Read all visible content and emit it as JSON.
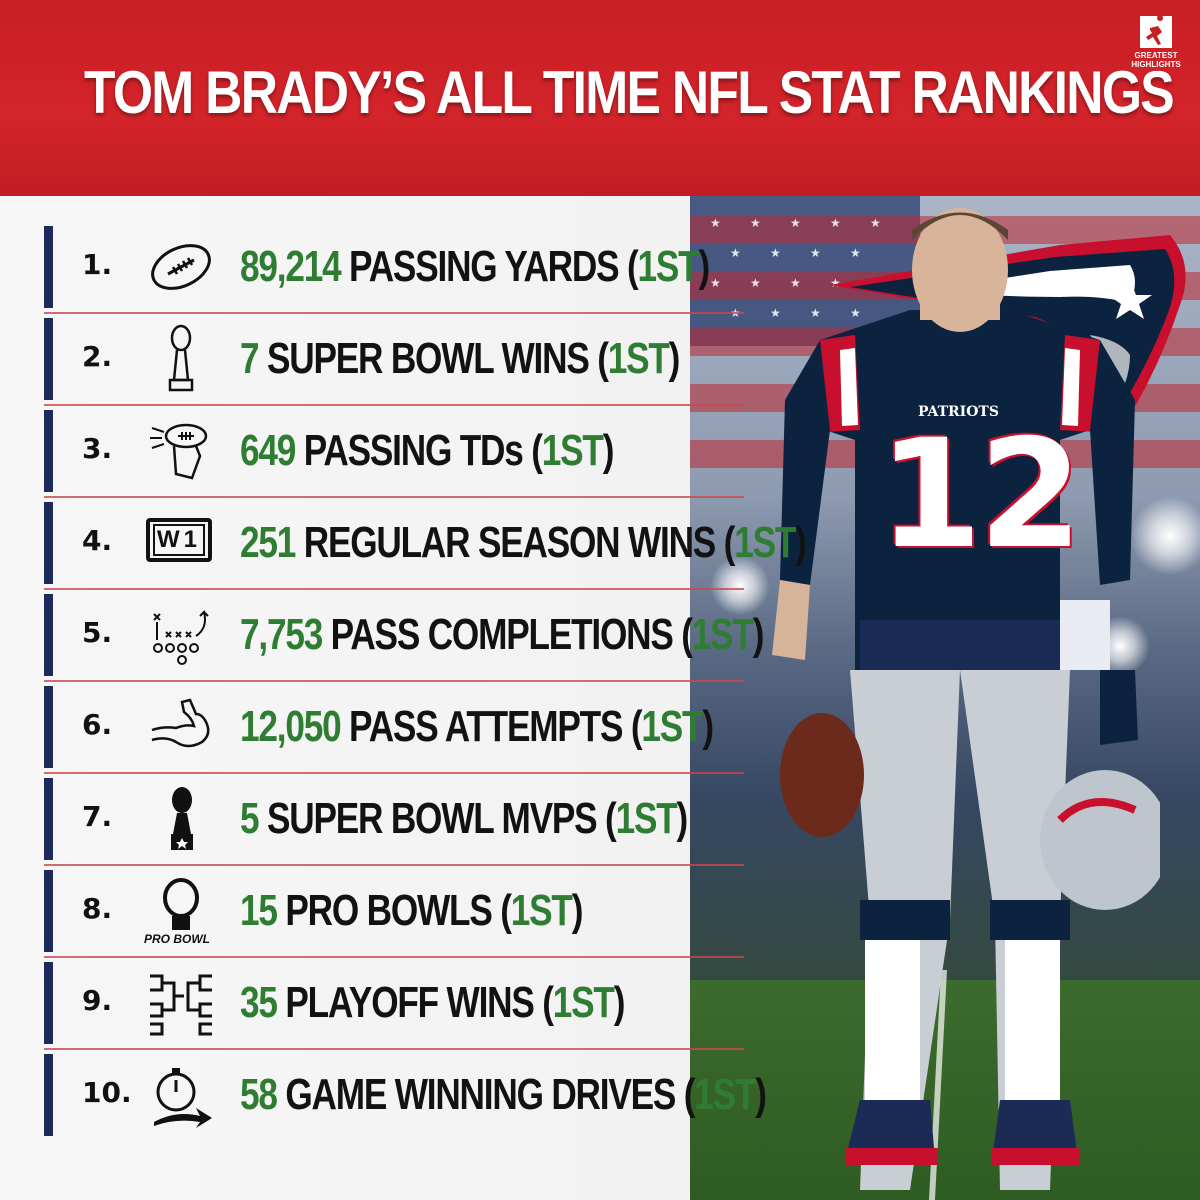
{
  "header": {
    "title": "TOM BRADY’S ALL TIME NFL STAT RANKINGS",
    "brand": "GREATEST HIGHLIGHTS",
    "accent_color": "#d3242a"
  },
  "player": {
    "team_name": "PATRIOTS",
    "jersey_number": "12"
  },
  "stats": [
    {
      "number": "1.",
      "value": "89,214",
      "label": "PASSING YARDS",
      "rank": "1ST",
      "icon": "football-icon"
    },
    {
      "number": "2.",
      "value": "7",
      "label": "SUPER BOWL WINS",
      "rank": "1ST",
      "icon": "lombardi-trophy-icon"
    },
    {
      "number": "3.",
      "value": "649",
      "label": "PASSING TDs",
      "rank": "1ST",
      "icon": "hand-throwing-icon"
    },
    {
      "number": "4.",
      "value": "251",
      "label": "REGULAR SEASON WINS",
      "rank": "1ST",
      "icon": "scoreboard-icon",
      "icon_text": "W1"
    },
    {
      "number": "5.",
      "value": "7,753",
      "label": "PASS COMPLETIONS",
      "rank": "1ST",
      "icon": "play-diagram-icon"
    },
    {
      "number": "6.",
      "value": "12,050",
      "label": "PASS ATTEMPTS",
      "rank": "1ST",
      "icon": "flexed-arm-icon"
    },
    {
      "number": "7.",
      "value": "5",
      "label": "SUPER BOWL MVPS",
      "rank": "1ST",
      "icon": "mvp-trophy-icon"
    },
    {
      "number": "8.",
      "value": "15",
      "label": "PRO BOWLS",
      "rank": "1ST",
      "icon": "pro-bowl-icon",
      "icon_text": "PRO BOWL"
    },
    {
      "number": "9.",
      "value": "35",
      "label": "PLAYOFF WINS",
      "rank": "1ST",
      "icon": "bracket-icon"
    },
    {
      "number": "10.",
      "value": "58",
      "label": "GAME WINNING DRIVES",
      "rank": "1ST",
      "icon": "stopwatch-arrow-icon"
    }
  ],
  "colors": {
    "value_green": "#2f7d32",
    "bar_navy": "#1e2a5a",
    "rule_red": "#c9494c"
  }
}
